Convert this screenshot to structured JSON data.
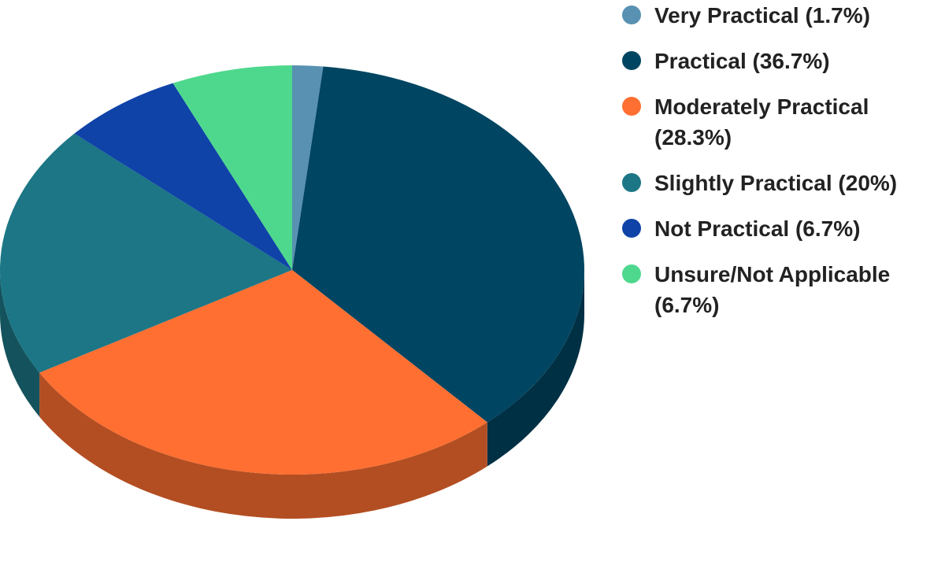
{
  "chart_data": {
    "type": "pie",
    "title": "",
    "three_d": true,
    "legend_position": "right",
    "slices": [
      {
        "label": "Very Practical (1.7%)",
        "value": 1.7,
        "color": "#5891b2"
      },
      {
        "label": "Practical (36.7%)",
        "value": 36.7,
        "color": "#004561"
      },
      {
        "label": "Moderately Practical (28.3%)",
        "value": 28.3,
        "color": "#ff6f31"
      },
      {
        "label": "Slightly Practical (20%)",
        "value": 20,
        "color": "#1c7685"
      },
      {
        "label": "Not Practical (6.7%)",
        "value": 6.7,
        "color": "#0f43a8"
      },
      {
        "label": "Unsure/Not Applicable (6.7%)",
        "value": 6.7,
        "color": "#4ed88d"
      }
    ]
  }
}
